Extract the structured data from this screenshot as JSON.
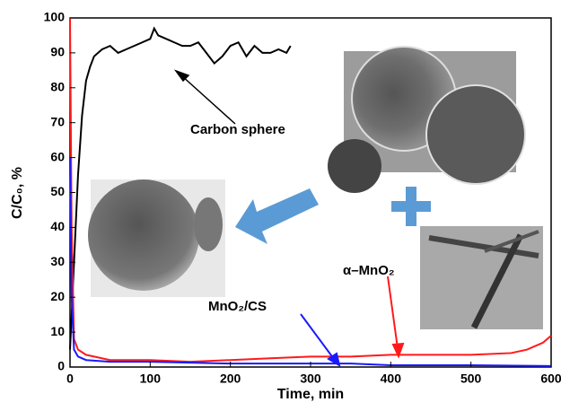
{
  "chart_data": {
    "type": "line",
    "xlabel": "Time, min",
    "ylabel": "C/C₀, %",
    "xlim": [
      0,
      600
    ],
    "ylim": [
      0,
      100
    ],
    "xticks": [
      0,
      100,
      200,
      300,
      400,
      500,
      600
    ],
    "yticks": [
      0,
      10,
      20,
      30,
      40,
      50,
      60,
      70,
      80,
      90,
      100
    ],
    "series": [
      {
        "name": "Carbon sphere",
        "color": "#000000",
        "x": [
          0,
          5,
          10,
          15,
          20,
          25,
          30,
          40,
          50,
          60,
          70,
          80,
          90,
          100,
          105,
          110,
          120,
          130,
          140,
          150,
          160,
          170,
          180,
          190,
          200,
          210,
          220,
          230,
          240,
          250,
          260,
          270,
          275
        ],
        "values": [
          5,
          30,
          55,
          72,
          82,
          86,
          89,
          91,
          92,
          90,
          91,
          92,
          93,
          94,
          97,
          95,
          94,
          93,
          92,
          92,
          93,
          90,
          87,
          89,
          92,
          93,
          89,
          92,
          90,
          90,
          91,
          90,
          92
        ]
      },
      {
        "name": "α–MnO₂",
        "color": "#ff1a1a",
        "x": [
          0,
          2,
          5,
          10,
          20,
          50,
          100,
          150,
          200,
          250,
          300,
          350,
          400,
          450,
          500,
          550,
          570,
          590,
          600
        ],
        "values": [
          100,
          40,
          8,
          5,
          3.5,
          2,
          2,
          1.5,
          2,
          2.5,
          3,
          3,
          3.5,
          3.5,
          3.5,
          4,
          5,
          7,
          9
        ]
      },
      {
        "name": "MnO₂/CS",
        "color": "#1a1aff",
        "x": [
          0,
          2,
          5,
          10,
          20,
          50,
          100,
          200,
          300,
          350,
          400,
          500,
          600
        ],
        "values": [
          60,
          20,
          5,
          3,
          2,
          1.5,
          1.5,
          1,
          1,
          1,
          0.5,
          0.5,
          0.3
        ]
      }
    ]
  }
}
